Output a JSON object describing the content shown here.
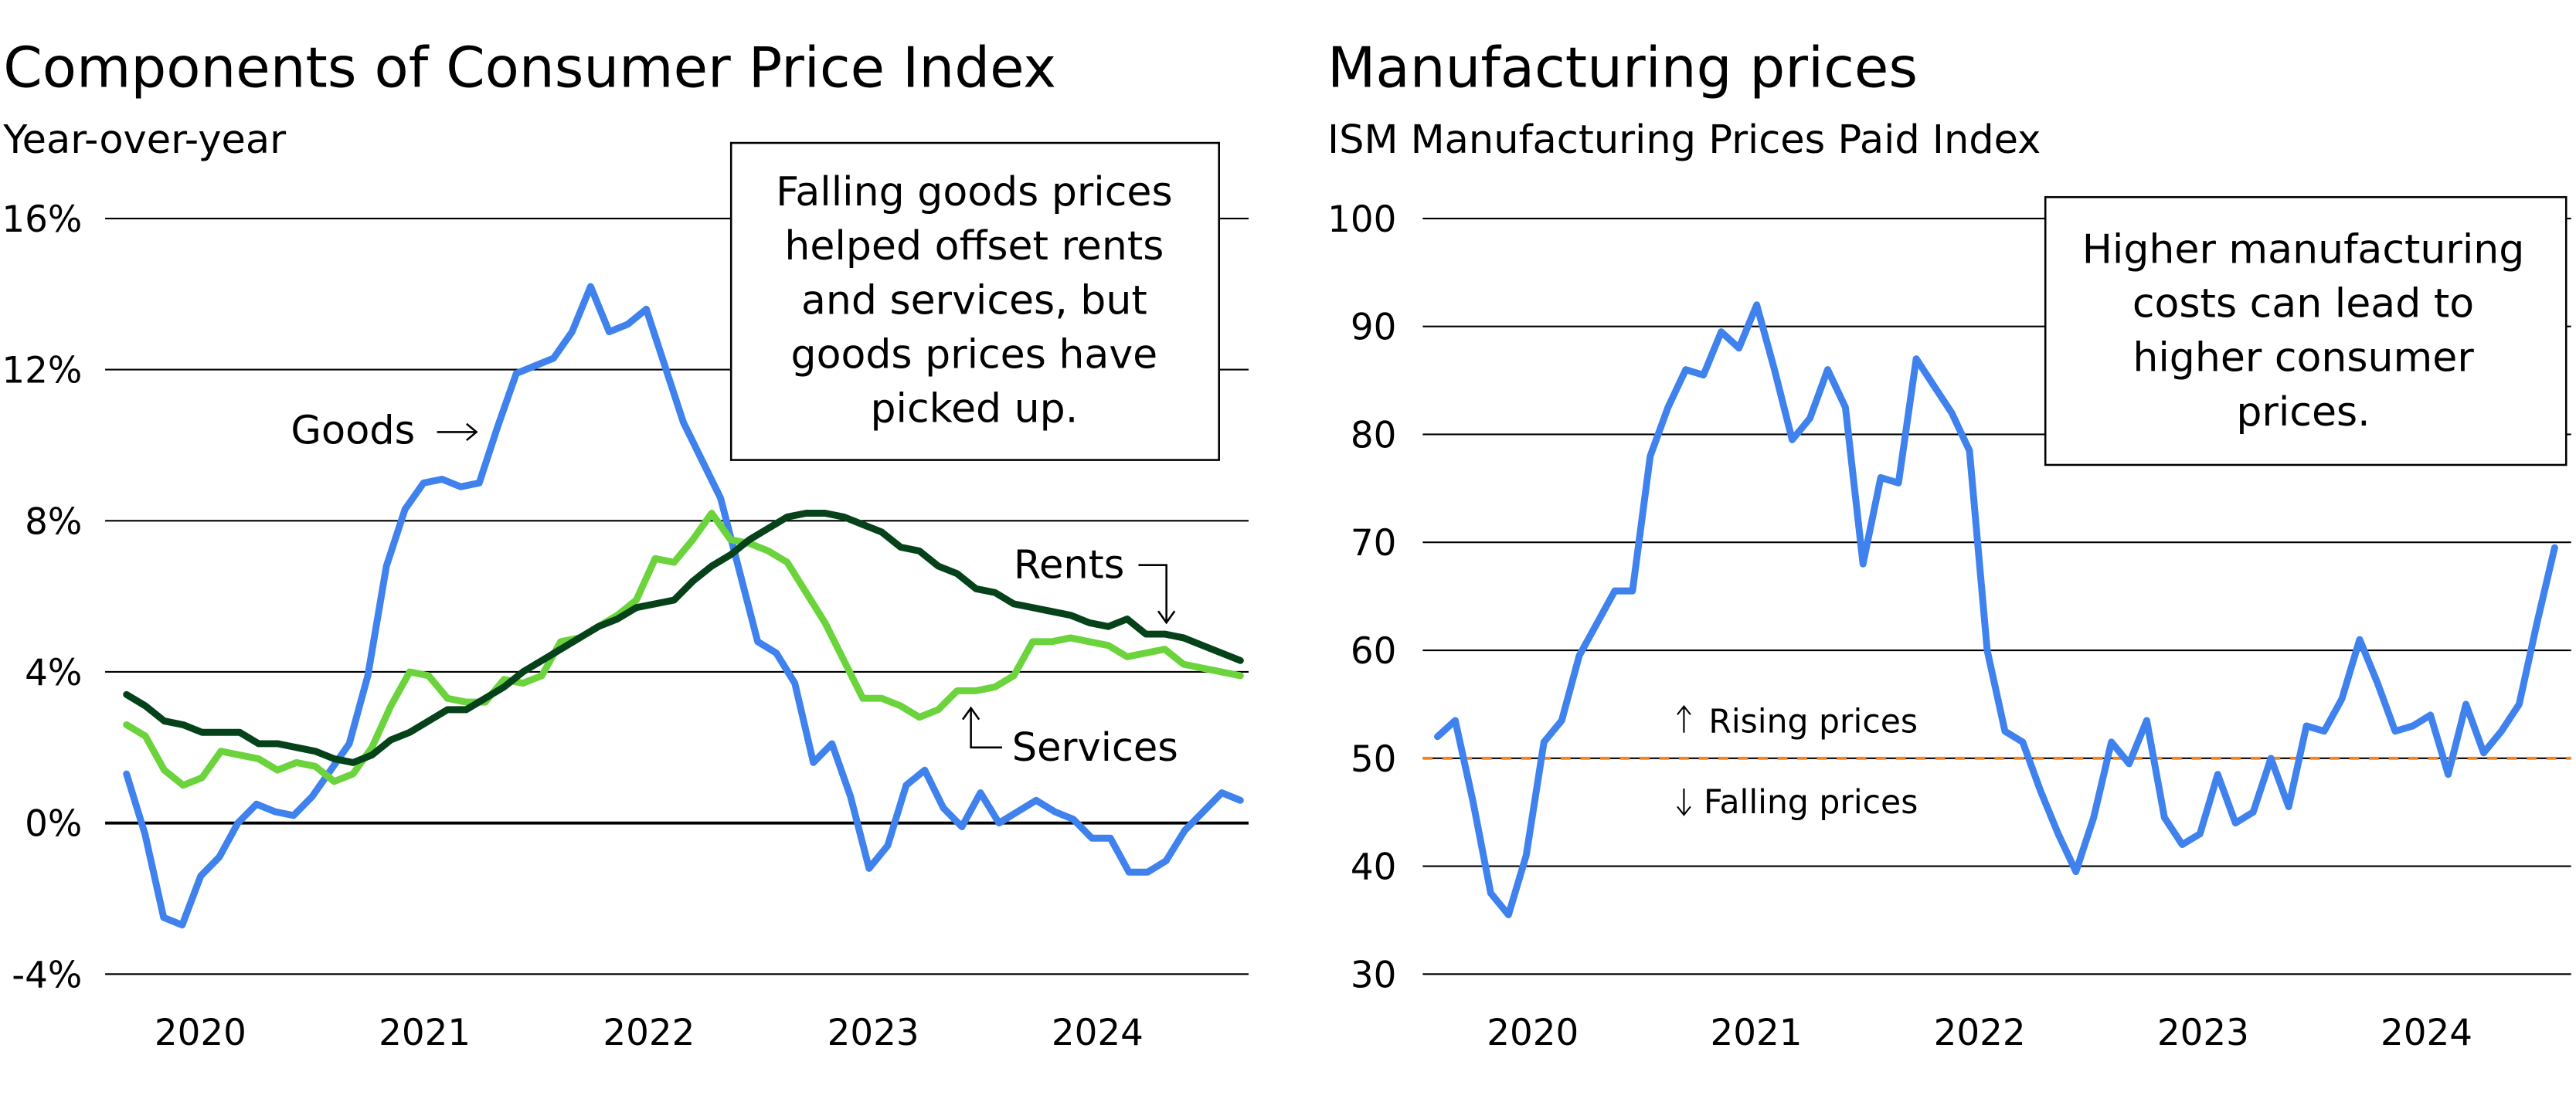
{
  "chart_data": [
    {
      "type": "line",
      "title": "Components of Consumer Price Index",
      "subtitle": "Year-over-year",
      "xlabel": "",
      "ylabel": "",
      "ylim": [
        -4,
        16
      ],
      "y_ticks": [
        "16%",
        "12%",
        "8%",
        "4%",
        "0%",
        "-4%"
      ],
      "y_tick_values": [
        16,
        12,
        8,
        4,
        0,
        -4
      ],
      "x_ticks": [
        "2020",
        "2021",
        "2022",
        "2023",
        "2024"
      ],
      "grid": true,
      "x_start_month": 2,
      "series": [
        {
          "name": "Goods",
          "color": "#3F82EE",
          "values": [
            1.3,
            -0.3,
            -2.5,
            -2.7,
            -1.4,
            -0.9,
            0.0,
            0.5,
            0.3,
            0.2,
            0.7,
            1.4,
            2.1,
            3.9,
            6.8,
            8.3,
            9.0,
            9.1,
            8.9,
            9.0,
            10.5,
            11.9,
            12.1,
            12.3,
            13.0,
            14.2,
            13.0,
            13.2,
            13.6,
            12.1,
            10.6,
            9.6,
            8.6,
            6.7,
            4.8,
            4.5,
            3.7,
            1.6,
            2.1,
            0.7,
            -1.2,
            -0.6,
            1.0,
            1.4,
            0.4,
            -0.1,
            0.8,
            0.0,
            0.3,
            0.6,
            0.3,
            0.1,
            -0.4,
            -0.4,
            -1.3,
            -1.3,
            -1.0,
            -0.2,
            0.3,
            0.8,
            0.6
          ]
        },
        {
          "name": "Services",
          "color": "#6BD33B",
          "values": [
            2.6,
            2.3,
            1.4,
            1.0,
            1.2,
            1.9,
            1.8,
            1.7,
            1.4,
            1.6,
            1.5,
            1.1,
            1.3,
            2.0,
            3.1,
            4.0,
            3.9,
            3.3,
            3.2,
            3.2,
            3.8,
            3.7,
            3.9,
            4.8,
            4.9,
            5.2,
            5.5,
            5.9,
            7.0,
            6.9,
            7.5,
            8.2,
            7.5,
            7.4,
            7.2,
            6.9,
            6.1,
            5.3,
            4.3,
            3.3,
            3.3,
            3.1,
            2.8,
            3.0,
            3.5,
            3.5,
            3.6,
            3.9,
            4.8,
            4.8,
            4.9,
            4.8,
            4.7,
            4.4,
            4.5,
            4.6,
            4.2,
            4.1,
            4.0,
            3.9
          ]
        },
        {
          "name": "Rents",
          "color": "#05421A",
          "values": [
            3.4,
            3.1,
            2.7,
            2.6,
            2.4,
            2.4,
            2.4,
            2.1,
            2.1,
            2.0,
            1.9,
            1.7,
            1.6,
            1.8,
            2.2,
            2.4,
            2.7,
            3.0,
            3.0,
            3.3,
            3.6,
            4.0,
            4.3,
            4.6,
            4.9,
            5.2,
            5.4,
            5.7,
            5.8,
            5.9,
            6.4,
            6.8,
            7.1,
            7.5,
            7.8,
            8.1,
            8.2,
            8.2,
            8.1,
            7.9,
            7.7,
            7.3,
            7.2,
            6.8,
            6.6,
            6.2,
            6.1,
            5.8,
            5.7,
            5.6,
            5.5,
            5.3,
            5.2,
            5.4,
            5.0,
            5.0,
            4.9,
            4.7,
            4.5,
            4.3
          ]
        }
      ],
      "annotations": {
        "goods_label": "Goods",
        "rents_label": "Rents",
        "services_label": "Services",
        "box_lines": [
          "Falling goods prices",
          "helped offset rents",
          "and services, but",
          "goods prices have",
          "picked up."
        ]
      }
    },
    {
      "type": "line",
      "title": "Manufacturing prices",
      "subtitle": "ISM Manufacturing Prices Paid Index",
      "xlabel": "",
      "ylabel": "",
      "ylim": [
        30,
        100
      ],
      "y_ticks": [
        "100",
        "90",
        "80",
        "70",
        "60",
        "50",
        "40",
        "30"
      ],
      "y_tick_values": [
        100,
        90,
        80,
        70,
        60,
        50,
        40,
        30
      ],
      "x_ticks": [
        "2020",
        "2021",
        "2022",
        "2023",
        "2024"
      ],
      "grid": true,
      "reference_line": {
        "value": 50,
        "color": "#F5841F",
        "style": "dashed"
      },
      "series": [
        {
          "name": "ISM Prices Paid",
          "color": "#3F82EE",
          "values": [
            52,
            53.5,
            46,
            37.5,
            35.5,
            41,
            51.5,
            53.5,
            59.5,
            62.5,
            65.5,
            65.5,
            78,
            82.5,
            86,
            85.5,
            89.5,
            88,
            92,
            86,
            79.5,
            81.5,
            86,
            82.5,
            68,
            76,
            75.5,
            87,
            84.5,
            82,
            78.5,
            60,
            52.5,
            51.5,
            47,
            43,
            39.5,
            44.5,
            51.5,
            49.5,
            53.5,
            44.5,
            42,
            43,
            48.5,
            44,
            45,
            50,
            45.5,
            53,
            52.5,
            55.5,
            61,
            57,
            52.5,
            53,
            54,
            48.5,
            55,
            50.5,
            52.5,
            55,
            62.5,
            69.5
          ]
        }
      ],
      "annotations": {
        "rising_label": "Rising prices",
        "falling_label": "Falling prices",
        "box_lines": [
          "Higher manufacturing",
          "costs can lead to",
          "higher consumer",
          "prices."
        ]
      }
    }
  ]
}
